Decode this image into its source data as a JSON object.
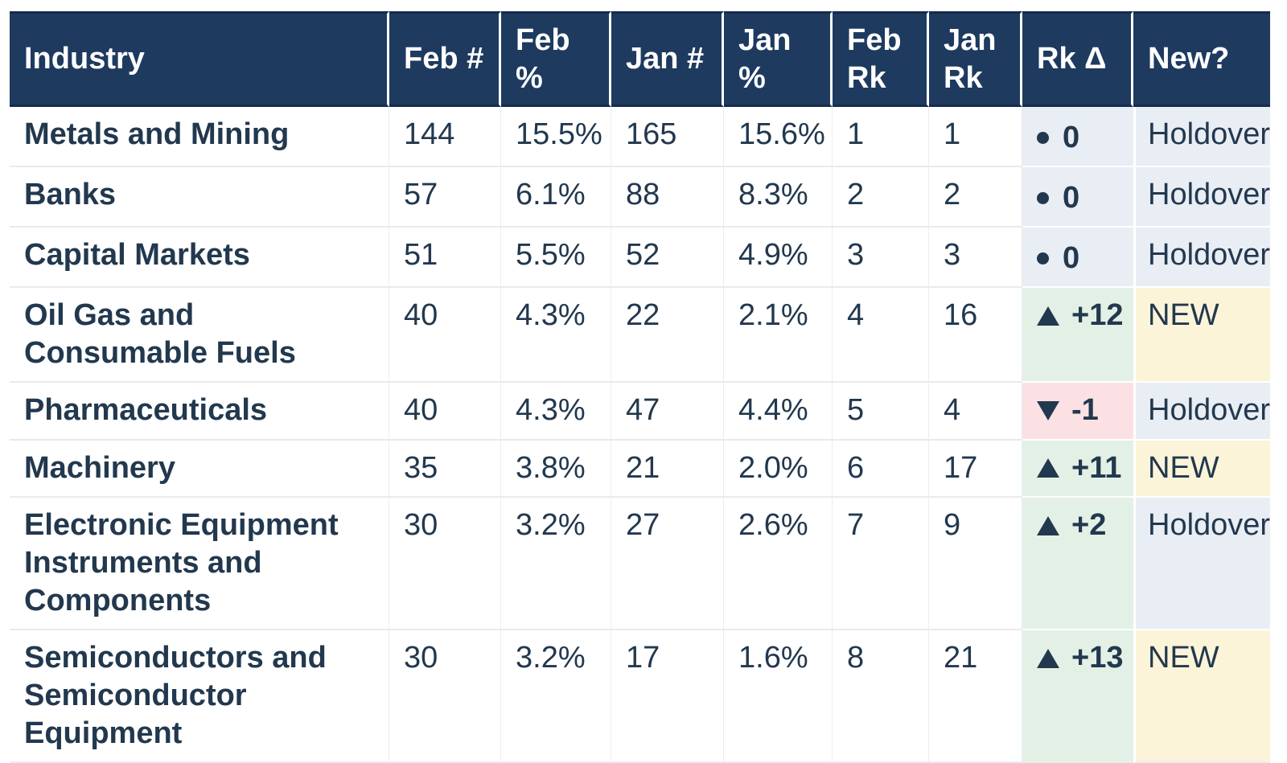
{
  "colors": {
    "header_bg": "#1E3A5F",
    "header_border": "#172B4E",
    "header_text": "#FFFFFF",
    "body_text": "#22384E",
    "steady_bg": "#E9EDF4",
    "up_bg": "#E3F0E6",
    "down_bg": "#FBE1E4",
    "new_bg": "#FCF4D9",
    "holdover_bg": "#E9EDF4"
  },
  "table": {
    "columns": [
      {
        "key": "industry",
        "label": "Industry"
      },
      {
        "key": "feb_num",
        "label": "Feb #"
      },
      {
        "key": "feb_pct",
        "label": "Feb %"
      },
      {
        "key": "jan_num",
        "label": "Jan #"
      },
      {
        "key": "jan_pct",
        "label": "Jan %"
      },
      {
        "key": "feb_rk",
        "label": "Feb Rk"
      },
      {
        "key": "jan_rk",
        "label": "Jan Rk"
      },
      {
        "key": "rk_delta",
        "label": "Rk Δ"
      },
      {
        "key": "new",
        "label": "New?"
      }
    ],
    "rows": [
      {
        "industry": "Metals and Mining",
        "feb_num": "144",
        "feb_pct": "15.5%",
        "jan_num": "165",
        "jan_pct": "15.6%",
        "feb_rk": "1",
        "jan_rk": "1",
        "rk_delta": {
          "direction": "same",
          "label": "0"
        },
        "new": {
          "label": "Holdover",
          "type": "holdover"
        }
      },
      {
        "industry": "Banks",
        "feb_num": "57",
        "feb_pct": "6.1%",
        "jan_num": "88",
        "jan_pct": "8.3%",
        "feb_rk": "2",
        "jan_rk": "2",
        "rk_delta": {
          "direction": "same",
          "label": "0"
        },
        "new": {
          "label": "Holdover",
          "type": "holdover"
        }
      },
      {
        "industry": "Capital Markets",
        "feb_num": "51",
        "feb_pct": "5.5%",
        "jan_num": "52",
        "jan_pct": "4.9%",
        "feb_rk": "3",
        "jan_rk": "3",
        "rk_delta": {
          "direction": "same",
          "label": "0"
        },
        "new": {
          "label": "Holdover",
          "type": "holdover"
        }
      },
      {
        "industry": "Oil Gas and Consumable Fuels",
        "feb_num": "40",
        "feb_pct": "4.3%",
        "jan_num": "22",
        "jan_pct": "2.1%",
        "feb_rk": "4",
        "jan_rk": "16",
        "rk_delta": {
          "direction": "up",
          "label": "+12"
        },
        "new": {
          "label": "NEW",
          "type": "new"
        }
      },
      {
        "industry": "Pharmaceuticals",
        "feb_num": "40",
        "feb_pct": "4.3%",
        "jan_num": "47",
        "jan_pct": "4.4%",
        "feb_rk": "5",
        "jan_rk": "4",
        "rk_delta": {
          "direction": "down",
          "label": "-1"
        },
        "new": {
          "label": "Holdover",
          "type": "holdover"
        }
      },
      {
        "industry": "Machinery",
        "feb_num": "35",
        "feb_pct": "3.8%",
        "jan_num": "21",
        "jan_pct": "2.0%",
        "feb_rk": "6",
        "jan_rk": "17",
        "rk_delta": {
          "direction": "up",
          "label": "+11"
        },
        "new": {
          "label": "NEW",
          "type": "new"
        }
      },
      {
        "industry": "Electronic Equipment Instruments and Components",
        "feb_num": "30",
        "feb_pct": "3.2%",
        "jan_num": "27",
        "jan_pct": "2.6%",
        "feb_rk": "7",
        "jan_rk": "9",
        "rk_delta": {
          "direction": "up",
          "label": "+2"
        },
        "new": {
          "label": "Holdover",
          "type": "holdover"
        }
      },
      {
        "industry": "Semiconductors and Semiconductor Equipment",
        "feb_num": "30",
        "feb_pct": "3.2%",
        "jan_num": "17",
        "jan_pct": "1.6%",
        "feb_rk": "8",
        "jan_rk": "21",
        "rk_delta": {
          "direction": "up",
          "label": "+13"
        },
        "new": {
          "label": "NEW",
          "type": "new"
        }
      }
    ]
  },
  "chart_data": {
    "type": "table",
    "title": "Industry ranking by monthly counts",
    "columns": [
      "Industry",
      "Feb #",
      "Feb %",
      "Jan #",
      "Jan %",
      "Feb Rk",
      "Jan Rk",
      "Rk Δ",
      "New?"
    ],
    "rows": [
      [
        "Metals and Mining",
        144,
        "15.5%",
        165,
        "15.6%",
        1,
        1,
        "● 0",
        "Holdover"
      ],
      [
        "Banks",
        57,
        "6.1%",
        88,
        "8.3%",
        2,
        2,
        "● 0",
        "Holdover"
      ],
      [
        "Capital Markets",
        51,
        "5.5%",
        52,
        "4.9%",
        3,
        3,
        "● 0",
        "Holdover"
      ],
      [
        "Oil Gas and Consumable Fuels",
        40,
        "4.3%",
        22,
        "2.1%",
        4,
        16,
        "▲ +12",
        "NEW"
      ],
      [
        "Pharmaceuticals",
        40,
        "4.3%",
        47,
        "4.4%",
        5,
        4,
        "▼ -1",
        "Holdover"
      ],
      [
        "Machinery",
        35,
        "3.8%",
        21,
        "2.0%",
        6,
        17,
        "▲ +11",
        "NEW"
      ],
      [
        "Electronic Equipment Instruments and Components",
        30,
        "3.2%",
        27,
        "2.6%",
        7,
        9,
        "▲ +2",
        "Holdover"
      ],
      [
        "Semiconductors and Semiconductor Equipment",
        30,
        "3.2%",
        17,
        "1.6%",
        8,
        21,
        "▲ +13",
        "NEW"
      ]
    ]
  }
}
